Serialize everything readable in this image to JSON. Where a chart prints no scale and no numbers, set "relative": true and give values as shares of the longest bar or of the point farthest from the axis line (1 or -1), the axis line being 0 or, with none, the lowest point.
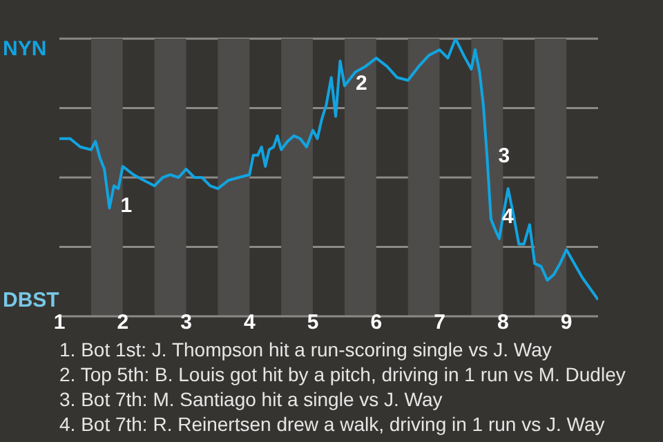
{
  "chart_data": {
    "type": "line",
    "relative": true,
    "xlim": [
      1,
      9.5
    ],
    "xticks": [
      1,
      2,
      3,
      4,
      5,
      6,
      7,
      8,
      9
    ],
    "x": [
      1,
      1.17,
      1.33,
      1.5,
      1.57,
      1.64,
      1.71,
      1.79,
      1.86,
      1.93,
      2,
      2.17,
      2.33,
      2.5,
      2.63,
      2.75,
      2.88,
      3,
      3.13,
      3.25,
      3.38,
      3.5,
      3.67,
      3.83,
      4,
      4.06,
      4.13,
      4.19,
      4.25,
      4.31,
      4.38,
      4.44,
      4.5,
      4.6,
      4.7,
      4.8,
      4.9,
      5,
      5.07,
      5.14,
      5.21,
      5.29,
      5.36,
      5.43,
      5.5,
      5.67,
      5.83,
      6,
      6.17,
      6.33,
      6.5,
      6.67,
      6.83,
      7,
      7.13,
      7.25,
      7.38,
      7.5,
      7.56,
      7.63,
      7.69,
      7.75,
      7.81,
      7.88,
      7.94,
      8,
      8.08,
      8.17,
      8.25,
      8.33,
      8.42,
      8.5,
      8.6,
      8.7,
      8.8,
      8.9,
      9,
      9.25,
      9.5
    ],
    "series": [
      {
        "color": "#12a4e0",
        "values": [
          0.64,
          0.64,
          0.61,
          0.6,
          0.63,
          0.57,
          0.53,
          0.39,
          0.47,
          0.46,
          0.54,
          0.51,
          0.49,
          0.47,
          0.5,
          0.51,
          0.5,
          0.53,
          0.5,
          0.5,
          0.47,
          0.46,
          0.49,
          0.5,
          0.51,
          0.58,
          0.58,
          0.61,
          0.54,
          0.6,
          0.61,
          0.65,
          0.6,
          0.63,
          0.65,
          0.64,
          0.61,
          0.67,
          0.64,
          0.71,
          0.76,
          0.86,
          0.72,
          0.92,
          0.83,
          0.88,
          0.9,
          0.93,
          0.9,
          0.86,
          0.85,
          0.9,
          0.94,
          0.96,
          0.93,
          1,
          0.94,
          0.89,
          0.96,
          0.88,
          0.76,
          0.57,
          0.35,
          0.31,
          0.28,
          0.36,
          0.46,
          0.36,
          0.26,
          0.26,
          0.33,
          0.19,
          0.18,
          0.13,
          0.15,
          0.19,
          0.24,
          0.14,
          0.06
        ]
      }
    ],
    "bands": [
      {
        "axis": "x",
        "from": 1.5,
        "to": 2,
        "color": "#4e4c4a"
      },
      {
        "axis": "x",
        "from": 2.5,
        "to": 3,
        "color": "#4e4c4a"
      },
      {
        "axis": "x",
        "from": 3.5,
        "to": 4,
        "color": "#4e4c4a"
      },
      {
        "axis": "x",
        "from": 4.5,
        "to": 5,
        "color": "#4e4c4a"
      },
      {
        "axis": "x",
        "from": 5.5,
        "to": 6,
        "color": "#4e4c4a"
      },
      {
        "axis": "x",
        "from": 6.5,
        "to": 7,
        "color": "#4e4c4a"
      },
      {
        "axis": "x",
        "from": 7.5,
        "to": 8,
        "color": "#4e4c4a"
      },
      {
        "axis": "x",
        "from": 8.5,
        "to": 9,
        "color": "#4e4c4a"
      }
    ],
    "annotations": [
      "NYN",
      "DBST",
      {
        "text": "1",
        "x": 1.79,
        "y": 0.39
      },
      {
        "text": "2",
        "x": 5.5,
        "y": 0.83
      },
      {
        "text": "3",
        "x": 7.75,
        "y": 0.57
      },
      {
        "text": "4",
        "x": 7.81,
        "y": 0.35
      },
      "1. Bot 1st: J. Thompson hit a run-scoring single vs J. Way",
      "2. Top 5th: B. Louis got hit by a pitch, driving in 1 run vs M. Dudley",
      "3. Bot 7th: M. Santiago hit a single vs J. Way",
      "4. Bot 7th: R. Reinertsen drew a walk, driving in 1 run vs J. Way"
    ],
    "grid": "y",
    "marker": "none",
    "line_style": "solid"
  }
}
